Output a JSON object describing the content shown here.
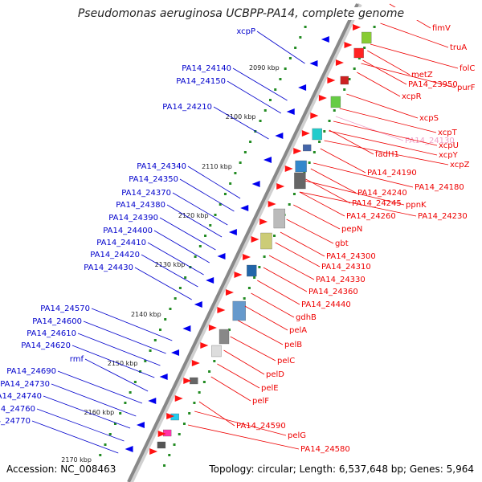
{
  "title": "Pseudomonas aeruginosa UCBPP-PA14, complete genome",
  "accession_text": "Accession: NC_008463",
  "topology_text": "Topology: circular; Length: 6,537,648 bp; Genes: 5,964",
  "colors": {
    "forward_label": "#ee0000",
    "reverse_label": "#0000cc",
    "pseudo_label": "#f0a0c8",
    "axis_line": "#999999",
    "tick_dots": "#228b22"
  },
  "kbp_ticks": [
    "2090 kbp",
    "2100 kbp",
    "2110 kbp",
    "2120 kbp",
    "2130 kbp",
    "2140 kbp",
    "2150 kbp",
    "2160 kbp",
    "2170 kbp"
  ],
  "reverse_labels": [
    "xcpP",
    "PA14_24140",
    "PA14_24150",
    "PA14_24210",
    "PA14_24340",
    "PA14_24350",
    "PA14_24370",
    "PA14_24380",
    "PA14_24390",
    "PA14_24400",
    "PA14_24410",
    "PA14_24420",
    "PA14_24430",
    "PA14_24570",
    "PA14_24600",
    "PA14_24610",
    "PA14_24620",
    "rmf",
    "PA14_24690",
    "PA14_24730",
    "PA14_24740",
    "PA14_24760",
    "PA14_24770"
  ],
  "forward_labels": [
    "fimV",
    "truA",
    "folC",
    "metZ",
    "PA14_23950",
    "purF",
    "xcpR",
    "xcpS",
    "xcpT",
    "PA14_24130",
    "xcpU",
    "fadH1",
    "xcpY",
    "xcpZ",
    "PA14_24190",
    "PA14_24180",
    "PA14_24240",
    "PA14_24245",
    "ppnK",
    "PA14_24230",
    "PA14_24260",
    "pepN",
    "gbt",
    "PA14_24300",
    "PA14_24310",
    "PA14_24330",
    "PA14_24360",
    "PA14_24440",
    "gdhB",
    "pelA",
    "pelB",
    "pelC",
    "pelD",
    "pelE",
    "pelF",
    "PA14_24590",
    "pelG",
    "PA14_24580"
  ],
  "pseudo_labels": [
    "PA14_24130"
  ]
}
